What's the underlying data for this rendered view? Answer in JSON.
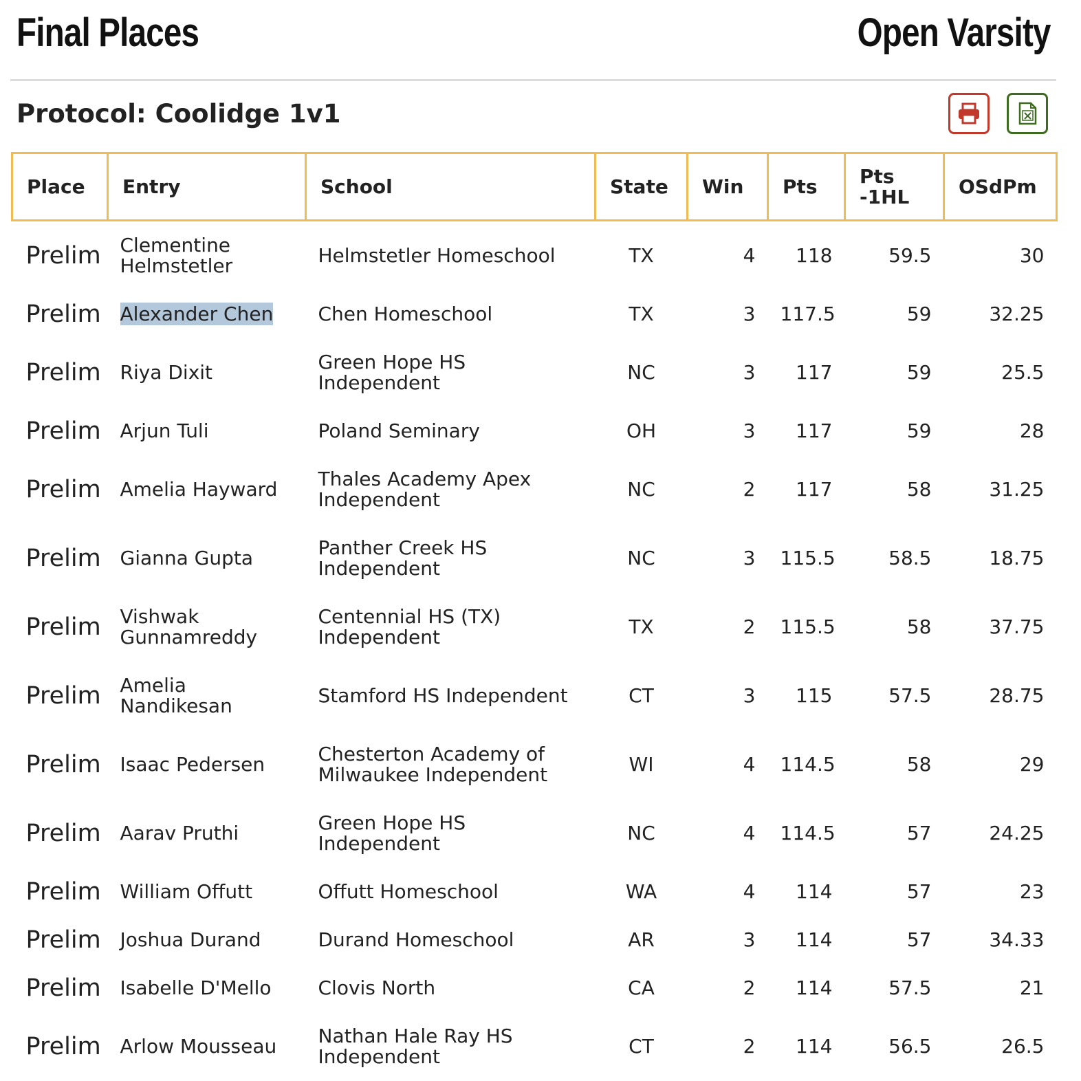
{
  "header": {
    "title": "Final Places",
    "division": "Open Varsity",
    "protocol": "Protocol: Coolidge 1v1"
  },
  "table": {
    "columns": [
      "Place",
      "Entry",
      "School",
      "State",
      "Win",
      "Pts",
      "Pts -1HL",
      "OSdPm"
    ],
    "rows": [
      [
        "Prelim",
        "Clementine Helmstetler",
        "Helmstetler Homeschool",
        "TX",
        4,
        118,
        59.5,
        30
      ],
      [
        "Prelim",
        "Alexander Chen",
        "Chen Homeschool",
        "TX",
        3,
        117.5,
        59,
        32.25
      ],
      [
        "Prelim",
        "Riya Dixit",
        "Green Hope HS Independent",
        "NC",
        3,
        117,
        59,
        25.5
      ],
      [
        "Prelim",
        "Arjun Tuli",
        "Poland Seminary",
        "OH",
        3,
        117,
        59,
        28
      ],
      [
        "Prelim",
        "Amelia Hayward",
        "Thales Academy Apex Independent",
        "NC",
        2,
        117,
        58,
        31.25
      ],
      [
        "Prelim",
        "Gianna Gupta",
        "Panther Creek HS Independent",
        "NC",
        3,
        115.5,
        58.5,
        18.75
      ],
      [
        "Prelim",
        "Vishwak Gunnamreddy",
        "Centennial HS (TX) Independent",
        "TX",
        2,
        115.5,
        58,
        37.75
      ],
      [
        "Prelim",
        "Amelia Nandikesan",
        "Stamford HS Independent",
        "CT",
        3,
        115,
        57.5,
        28.75
      ],
      [
        "Prelim",
        "Isaac Pedersen",
        "Chesterton Academy of Milwaukee Independent",
        "WI",
        4,
        114.5,
        58,
        29
      ],
      [
        "Prelim",
        "Aarav Pruthi",
        "Green Hope HS Independent",
        "NC",
        4,
        114.5,
        57,
        24.25
      ],
      [
        "Prelim",
        "William Offutt",
        "Offutt Homeschool",
        "WA",
        4,
        114,
        57,
        23
      ],
      [
        "Prelim",
        "Joshua Durand",
        "Durand Homeschool",
        "AR",
        3,
        114,
        57,
        34.33
      ],
      [
        "Prelim",
        "Isabelle D'Mello",
        "Clovis North",
        "CA",
        2,
        114,
        57.5,
        21
      ],
      [
        "Prelim",
        "Arlow Mousseau",
        "Nathan Hale Ray HS Independent",
        "CT",
        2,
        114,
        56.5,
        26.5
      ]
    ]
  }
}
